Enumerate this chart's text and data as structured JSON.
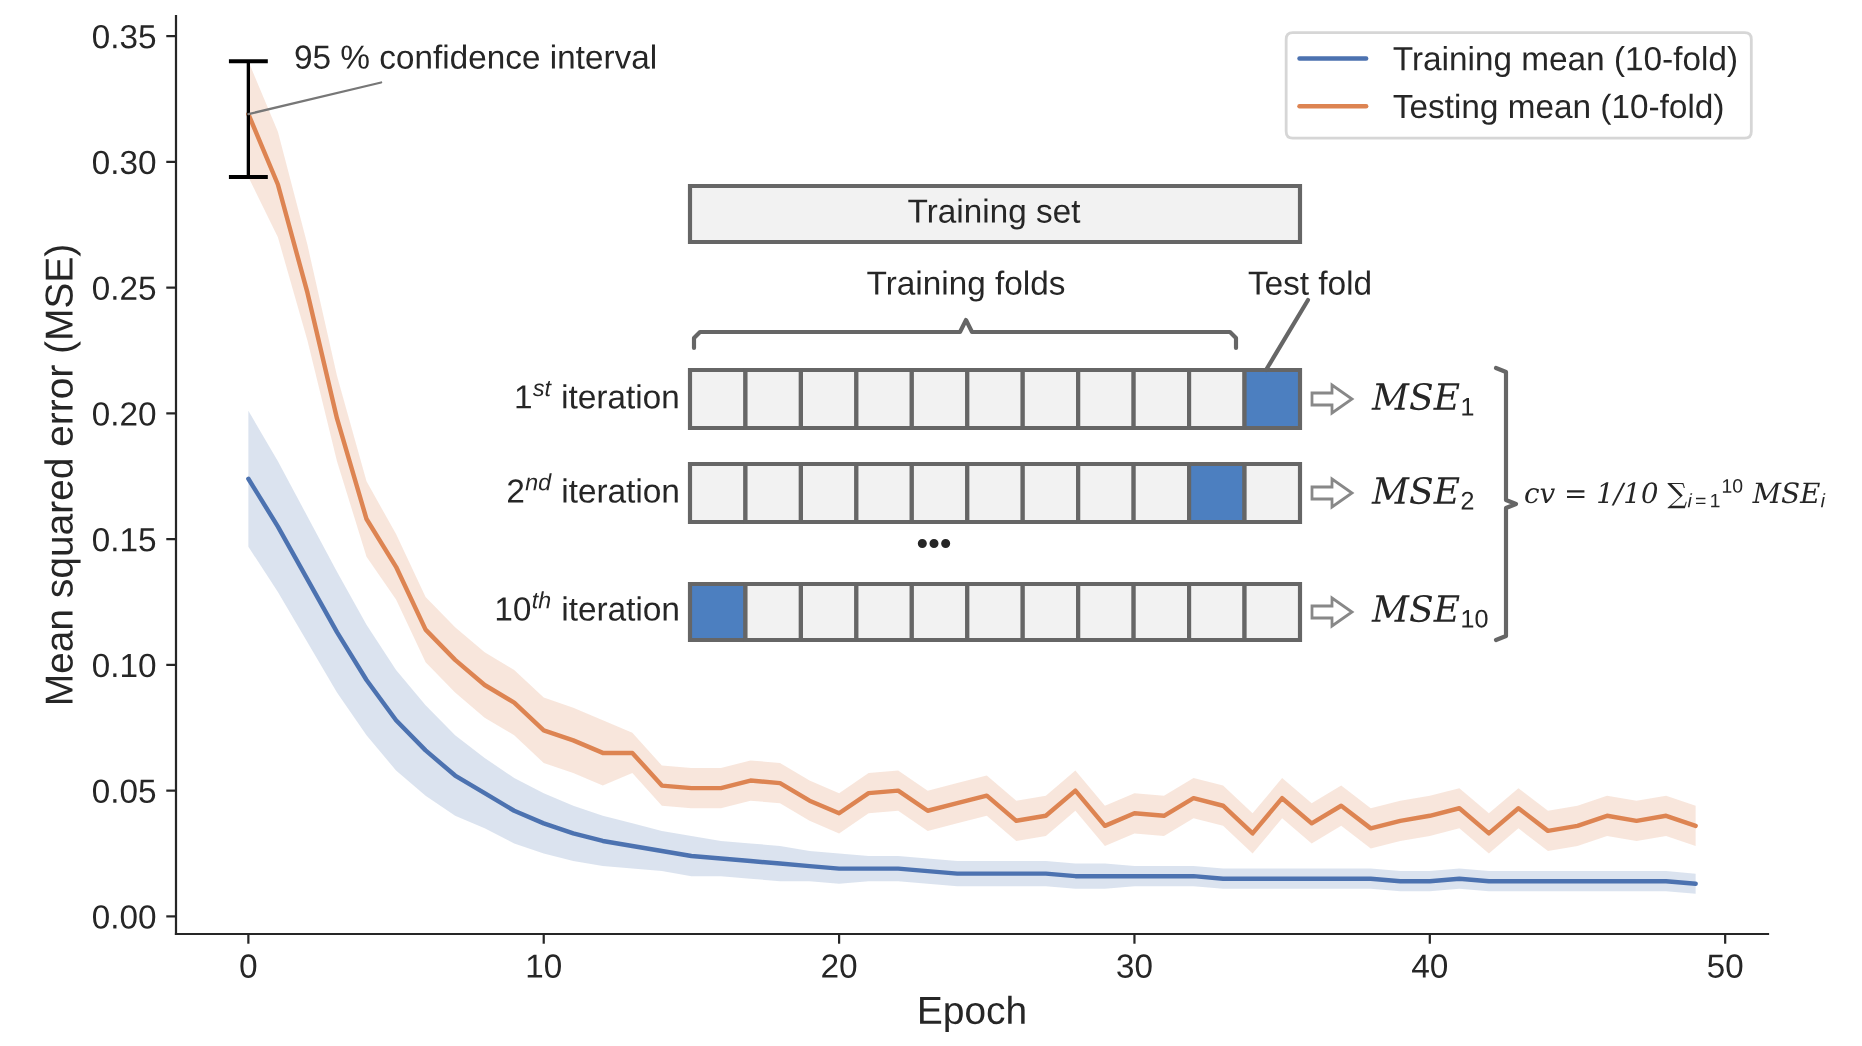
{
  "chart_data": {
    "type": "line",
    "xlabel": "Epoch",
    "ylabel": "Mean squared error (MSE)",
    "x": [
      0,
      1,
      2,
      3,
      4,
      5,
      6,
      7,
      8,
      9,
      10,
      11,
      12,
      13,
      14,
      15,
      16,
      17,
      18,
      19,
      20,
      21,
      22,
      23,
      24,
      25,
      26,
      27,
      28,
      29,
      30,
      31,
      32,
      33,
      34,
      35,
      36,
      37,
      38,
      39,
      40,
      41,
      42,
      43,
      44,
      45,
      46,
      47,
      48,
      49
    ],
    "series": [
      {
        "name": "Training mean (10-fold)",
        "color": "#4c72b0",
        "values": [
          0.174,
          0.155,
          0.134,
          0.113,
          0.094,
          0.078,
          0.066,
          0.056,
          0.049,
          0.042,
          0.037,
          0.033,
          0.03,
          0.028,
          0.026,
          0.024,
          0.023,
          0.022,
          0.021,
          0.02,
          0.019,
          0.019,
          0.019,
          0.018,
          0.017,
          0.017,
          0.017,
          0.017,
          0.016,
          0.016,
          0.016,
          0.016,
          0.016,
          0.015,
          0.015,
          0.015,
          0.015,
          0.015,
          0.015,
          0.014,
          0.014,
          0.015,
          0.014,
          0.014,
          0.014,
          0.014,
          0.014,
          0.014,
          0.014,
          0.013
        ],
        "lower": [
          0.147,
          0.129,
          0.109,
          0.089,
          0.072,
          0.058,
          0.048,
          0.04,
          0.035,
          0.029,
          0.025,
          0.022,
          0.02,
          0.019,
          0.018,
          0.016,
          0.016,
          0.015,
          0.014,
          0.014,
          0.013,
          0.014,
          0.014,
          0.013,
          0.012,
          0.012,
          0.012,
          0.012,
          0.011,
          0.011,
          0.012,
          0.012,
          0.012,
          0.011,
          0.011,
          0.011,
          0.011,
          0.011,
          0.011,
          0.01,
          0.01,
          0.011,
          0.01,
          0.01,
          0.01,
          0.01,
          0.01,
          0.01,
          0.01,
          0.009
        ],
        "upper": [
          0.201,
          0.181,
          0.159,
          0.137,
          0.116,
          0.098,
          0.084,
          0.072,
          0.063,
          0.055,
          0.049,
          0.044,
          0.04,
          0.037,
          0.034,
          0.032,
          0.03,
          0.029,
          0.028,
          0.026,
          0.025,
          0.024,
          0.024,
          0.023,
          0.022,
          0.022,
          0.022,
          0.022,
          0.021,
          0.021,
          0.02,
          0.02,
          0.02,
          0.019,
          0.019,
          0.019,
          0.019,
          0.019,
          0.019,
          0.018,
          0.018,
          0.019,
          0.018,
          0.018,
          0.018,
          0.018,
          0.018,
          0.018,
          0.018,
          0.017
        ]
      },
      {
        "name": "Testing mean (10-fold)",
        "color": "#dd8452",
        "values": [
          0.319,
          0.291,
          0.248,
          0.198,
          0.158,
          0.139,
          0.114,
          0.102,
          0.092,
          0.085,
          0.074,
          0.07,
          0.065,
          0.065,
          0.052,
          0.051,
          0.051,
          0.054,
          0.053,
          0.046,
          0.041,
          0.049,
          0.05,
          0.042,
          0.045,
          0.048,
          0.038,
          0.04,
          0.05,
          0.036,
          0.041,
          0.04,
          0.047,
          0.044,
          0.033,
          0.047,
          0.037,
          0.044,
          0.035,
          0.038,
          0.04,
          0.043,
          0.033,
          0.043,
          0.034,
          0.036,
          0.04,
          0.038,
          0.04,
          0.036
        ],
        "lower": [
          0.294,
          0.27,
          0.229,
          0.181,
          0.143,
          0.126,
          0.101,
          0.089,
          0.079,
          0.072,
          0.061,
          0.057,
          0.052,
          0.057,
          0.044,
          0.043,
          0.043,
          0.046,
          0.045,
          0.038,
          0.033,
          0.041,
          0.042,
          0.034,
          0.037,
          0.04,
          0.03,
          0.032,
          0.042,
          0.028,
          0.033,
          0.032,
          0.039,
          0.036,
          0.025,
          0.039,
          0.029,
          0.036,
          0.027,
          0.03,
          0.032,
          0.035,
          0.025,
          0.035,
          0.026,
          0.028,
          0.032,
          0.03,
          0.032,
          0.028
        ],
        "upper": [
          0.34,
          0.312,
          0.267,
          0.215,
          0.173,
          0.152,
          0.127,
          0.115,
          0.105,
          0.098,
          0.087,
          0.083,
          0.078,
          0.073,
          0.06,
          0.059,
          0.059,
          0.062,
          0.061,
          0.054,
          0.049,
          0.057,
          0.058,
          0.05,
          0.053,
          0.056,
          0.046,
          0.048,
          0.058,
          0.044,
          0.049,
          0.048,
          0.055,
          0.052,
          0.041,
          0.055,
          0.045,
          0.052,
          0.043,
          0.046,
          0.048,
          0.051,
          0.041,
          0.051,
          0.042,
          0.044,
          0.048,
          0.046,
          0.048,
          0.044
        ],
        "errors": [
          [
            0.294,
            0.34
          ],
          null,
          null,
          null,
          null,
          null,
          null,
          null,
          null,
          null,
          null,
          null,
          null,
          null,
          null,
          null,
          null,
          null,
          null,
          null,
          null,
          null,
          null,
          null,
          null,
          null,
          null,
          null,
          null,
          null,
          null,
          null,
          null,
          null,
          null,
          null,
          null,
          null,
          null,
          null,
          null,
          null,
          null,
          null,
          null,
          null,
          null,
          null,
          null,
          null
        ]
      }
    ],
    "xlim": [
      -2.45,
      51.45
    ],
    "xticks": [
      0,
      10,
      20,
      30,
      40,
      50
    ],
    "ylim": [
      -0.007,
      0.358
    ],
    "yticks": [
      {
        "value": 0,
        "label": "0.00"
      },
      {
        "value": 0.05,
        "label": "0.05"
      },
      {
        "value": 0.1,
        "label": "0.10"
      },
      {
        "value": 0.15,
        "label": "0.15"
      },
      {
        "value": 0.2,
        "label": "0.20"
      },
      {
        "value": 0.25,
        "label": "0.25"
      },
      {
        "value": 0.3,
        "label": "0.30"
      },
      {
        "value": 0.35,
        "label": "0.35"
      }
    ],
    "grid": false,
    "legend": "top right",
    "annotations": [
      {
        "text": "95 % confidence interval",
        "x": 0,
        "y": 0.319
      },
      "Training set",
      "Training folds",
      "Test fold",
      "1$^{st}$ iteration",
      "2$^{nd}$ iteration",
      "•••",
      "10$^{th}$ iteration",
      "MSE$_{1}$",
      "MSE$_{2}$",
      "MSE$_{10}$",
      "cv = 1/10 ∑$_{i=1}$$^{10}$ MSE$_{i}$"
    ]
  }
}
